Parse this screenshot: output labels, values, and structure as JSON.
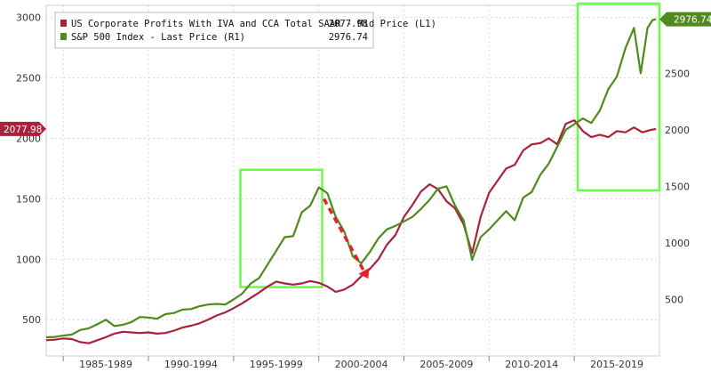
{
  "chart_data": {
    "type": "line",
    "title": "",
    "xlabel": "",
    "ylabel_left": "",
    "ylabel_right": "",
    "grid": true,
    "legend_placement": "top-left",
    "x_categories": [
      "1985-1989",
      "1990-1994",
      "1995-1999",
      "2000-2004",
      "2005-2009",
      "2010-2014",
      "2015-2019"
    ],
    "x_range": [
      1984,
      2020
    ],
    "y_left_range": [
      200,
      3100
    ],
    "y_left_ticks": [
      500,
      1000,
      1500,
      2000,
      2500,
      3000
    ],
    "y_right_range": [
      0,
      3100
    ],
    "y_right_ticks": [
      500,
      1000,
      1500,
      2000,
      2500
    ],
    "colors": {
      "profits": "#a8223a",
      "sp500": "#4f8a1c",
      "highlight": "#66ff44",
      "arrow": "#e8202a"
    },
    "series": [
      {
        "name": "US Corporate Profits With IVA and CCA Total SAAR - Mid Price (L1)",
        "last_value": "2077.98",
        "axis": "left",
        "color": "#a8223a",
        "points": [
          [
            1984.0,
            330
          ],
          [
            1984.5,
            335
          ],
          [
            1985.0,
            345
          ],
          [
            1985.5,
            340
          ],
          [
            1986.0,
            315
          ],
          [
            1986.5,
            305
          ],
          [
            1987.0,
            330
          ],
          [
            1987.5,
            355
          ],
          [
            1988.0,
            385
          ],
          [
            1988.5,
            400
          ],
          [
            1989.0,
            395
          ],
          [
            1989.5,
            390
          ],
          [
            1990.0,
            395
          ],
          [
            1990.5,
            385
          ],
          [
            1991.0,
            390
          ],
          [
            1991.5,
            410
          ],
          [
            1992.0,
            435
          ],
          [
            1992.5,
            450
          ],
          [
            1993.0,
            470
          ],
          [
            1993.5,
            500
          ],
          [
            1994.0,
            535
          ],
          [
            1994.5,
            560
          ],
          [
            1995.0,
            595
          ],
          [
            1995.5,
            635
          ],
          [
            1996.0,
            680
          ],
          [
            1996.5,
            725
          ],
          [
            1997.0,
            775
          ],
          [
            1997.5,
            815
          ],
          [
            1998.0,
            800
          ],
          [
            1998.5,
            790
          ],
          [
            1999.0,
            800
          ],
          [
            1999.5,
            820
          ],
          [
            2000.0,
            805
          ],
          [
            2000.5,
            775
          ],
          [
            2001.0,
            730
          ],
          [
            2001.5,
            750
          ],
          [
            2002.0,
            790
          ],
          [
            2002.5,
            860
          ],
          [
            2003.0,
            920
          ],
          [
            2003.5,
            1000
          ],
          [
            2004.0,
            1120
          ],
          [
            2004.5,
            1200
          ],
          [
            2005.0,
            1350
          ],
          [
            2005.5,
            1450
          ],
          [
            2006.0,
            1560
          ],
          [
            2006.5,
            1620
          ],
          [
            2007.0,
            1580
          ],
          [
            2007.5,
            1480
          ],
          [
            2008.0,
            1420
          ],
          [
            2008.5,
            1290
          ],
          [
            2009.0,
            1050
          ],
          [
            2009.5,
            1350
          ],
          [
            2010.0,
            1550
          ],
          [
            2010.5,
            1650
          ],
          [
            2011.0,
            1750
          ],
          [
            2011.5,
            1780
          ],
          [
            2012.0,
            1900
          ],
          [
            2012.5,
            1950
          ],
          [
            2013.0,
            1960
          ],
          [
            2013.5,
            2000
          ],
          [
            2014.0,
            1950
          ],
          [
            2014.5,
            2120
          ],
          [
            2015.0,
            2150
          ],
          [
            2015.5,
            2060
          ],
          [
            2016.0,
            2010
          ],
          [
            2016.5,
            2030
          ],
          [
            2017.0,
            2010
          ],
          [
            2017.5,
            2060
          ],
          [
            2018.0,
            2050
          ],
          [
            2018.5,
            2090
          ],
          [
            2019.0,
            2050
          ],
          [
            2019.5,
            2070
          ],
          [
            2019.8,
            2078
          ]
        ]
      },
      {
        "name": "S&P 500 Index - Last Price (R1)",
        "last_value": "2976.74",
        "axis": "right",
        "color": "#4f8a1c",
        "points": [
          [
            1984.0,
            165
          ],
          [
            1984.5,
            168
          ],
          [
            1985.0,
            180
          ],
          [
            1985.5,
            190
          ],
          [
            1986.0,
            230
          ],
          [
            1986.5,
            245
          ],
          [
            1987.0,
            280
          ],
          [
            1987.5,
            320
          ],
          [
            1988.0,
            265
          ],
          [
            1988.5,
            275
          ],
          [
            1989.0,
            300
          ],
          [
            1989.5,
            345
          ],
          [
            1990.0,
            340
          ],
          [
            1990.5,
            330
          ],
          [
            1991.0,
            370
          ],
          [
            1991.5,
            380
          ],
          [
            1992.0,
            410
          ],
          [
            1992.5,
            415
          ],
          [
            1993.0,
            440
          ],
          [
            1993.5,
            455
          ],
          [
            1994.0,
            460
          ],
          [
            1994.5,
            455
          ],
          [
            1995.0,
            500
          ],
          [
            1995.5,
            550
          ],
          [
            1996.0,
            640
          ],
          [
            1996.5,
            690
          ],
          [
            1997.0,
            810
          ],
          [
            1997.5,
            930
          ],
          [
            1998.0,
            1050
          ],
          [
            1998.5,
            1060
          ],
          [
            1999.0,
            1270
          ],
          [
            1999.5,
            1330
          ],
          [
            2000.0,
            1490
          ],
          [
            2000.5,
            1440
          ],
          [
            2001.0,
            1230
          ],
          [
            2001.5,
            1100
          ],
          [
            2002.0,
            880
          ],
          [
            2002.5,
            820
          ],
          [
            2003.0,
            920
          ],
          [
            2003.5,
            1040
          ],
          [
            2004.0,
            1120
          ],
          [
            2004.5,
            1150
          ],
          [
            2005.0,
            1190
          ],
          [
            2005.5,
            1230
          ],
          [
            2006.0,
            1300
          ],
          [
            2006.5,
            1380
          ],
          [
            2007.0,
            1480
          ],
          [
            2007.5,
            1500
          ],
          [
            2008.0,
            1330
          ],
          [
            2008.5,
            1200
          ],
          [
            2009.0,
            850
          ],
          [
            2009.5,
            1050
          ],
          [
            2010.0,
            1120
          ],
          [
            2010.5,
            1200
          ],
          [
            2011.0,
            1280
          ],
          [
            2011.5,
            1200
          ],
          [
            2012.0,
            1400
          ],
          [
            2012.5,
            1450
          ],
          [
            2013.0,
            1600
          ],
          [
            2013.5,
            1700
          ],
          [
            2014.0,
            1850
          ],
          [
            2014.5,
            2000
          ],
          [
            2015.0,
            2050
          ],
          [
            2015.5,
            2100
          ],
          [
            2016.0,
            2060
          ],
          [
            2016.5,
            2170
          ],
          [
            2017.0,
            2360
          ],
          [
            2017.5,
            2470
          ],
          [
            2018.0,
            2720
          ],
          [
            2018.5,
            2900
          ],
          [
            2018.9,
            2500
          ],
          [
            2019.3,
            2900
          ],
          [
            2019.6,
            2970
          ],
          [
            2019.8,
            2977
          ]
        ]
      }
    ],
    "highlight_boxes": [
      {
        "x_range": [
          1995.4,
          2000.2
        ],
        "y_range": [
          770,
          1740
        ]
      },
      {
        "x_range": [
          2015.2,
          2020.0
        ],
        "y_range": [
          1570,
          3200
        ]
      }
    ],
    "arrow": {
      "from": [
        2000.3,
        1500
      ],
      "to": [
        2002.9,
        840
      ]
    }
  }
}
